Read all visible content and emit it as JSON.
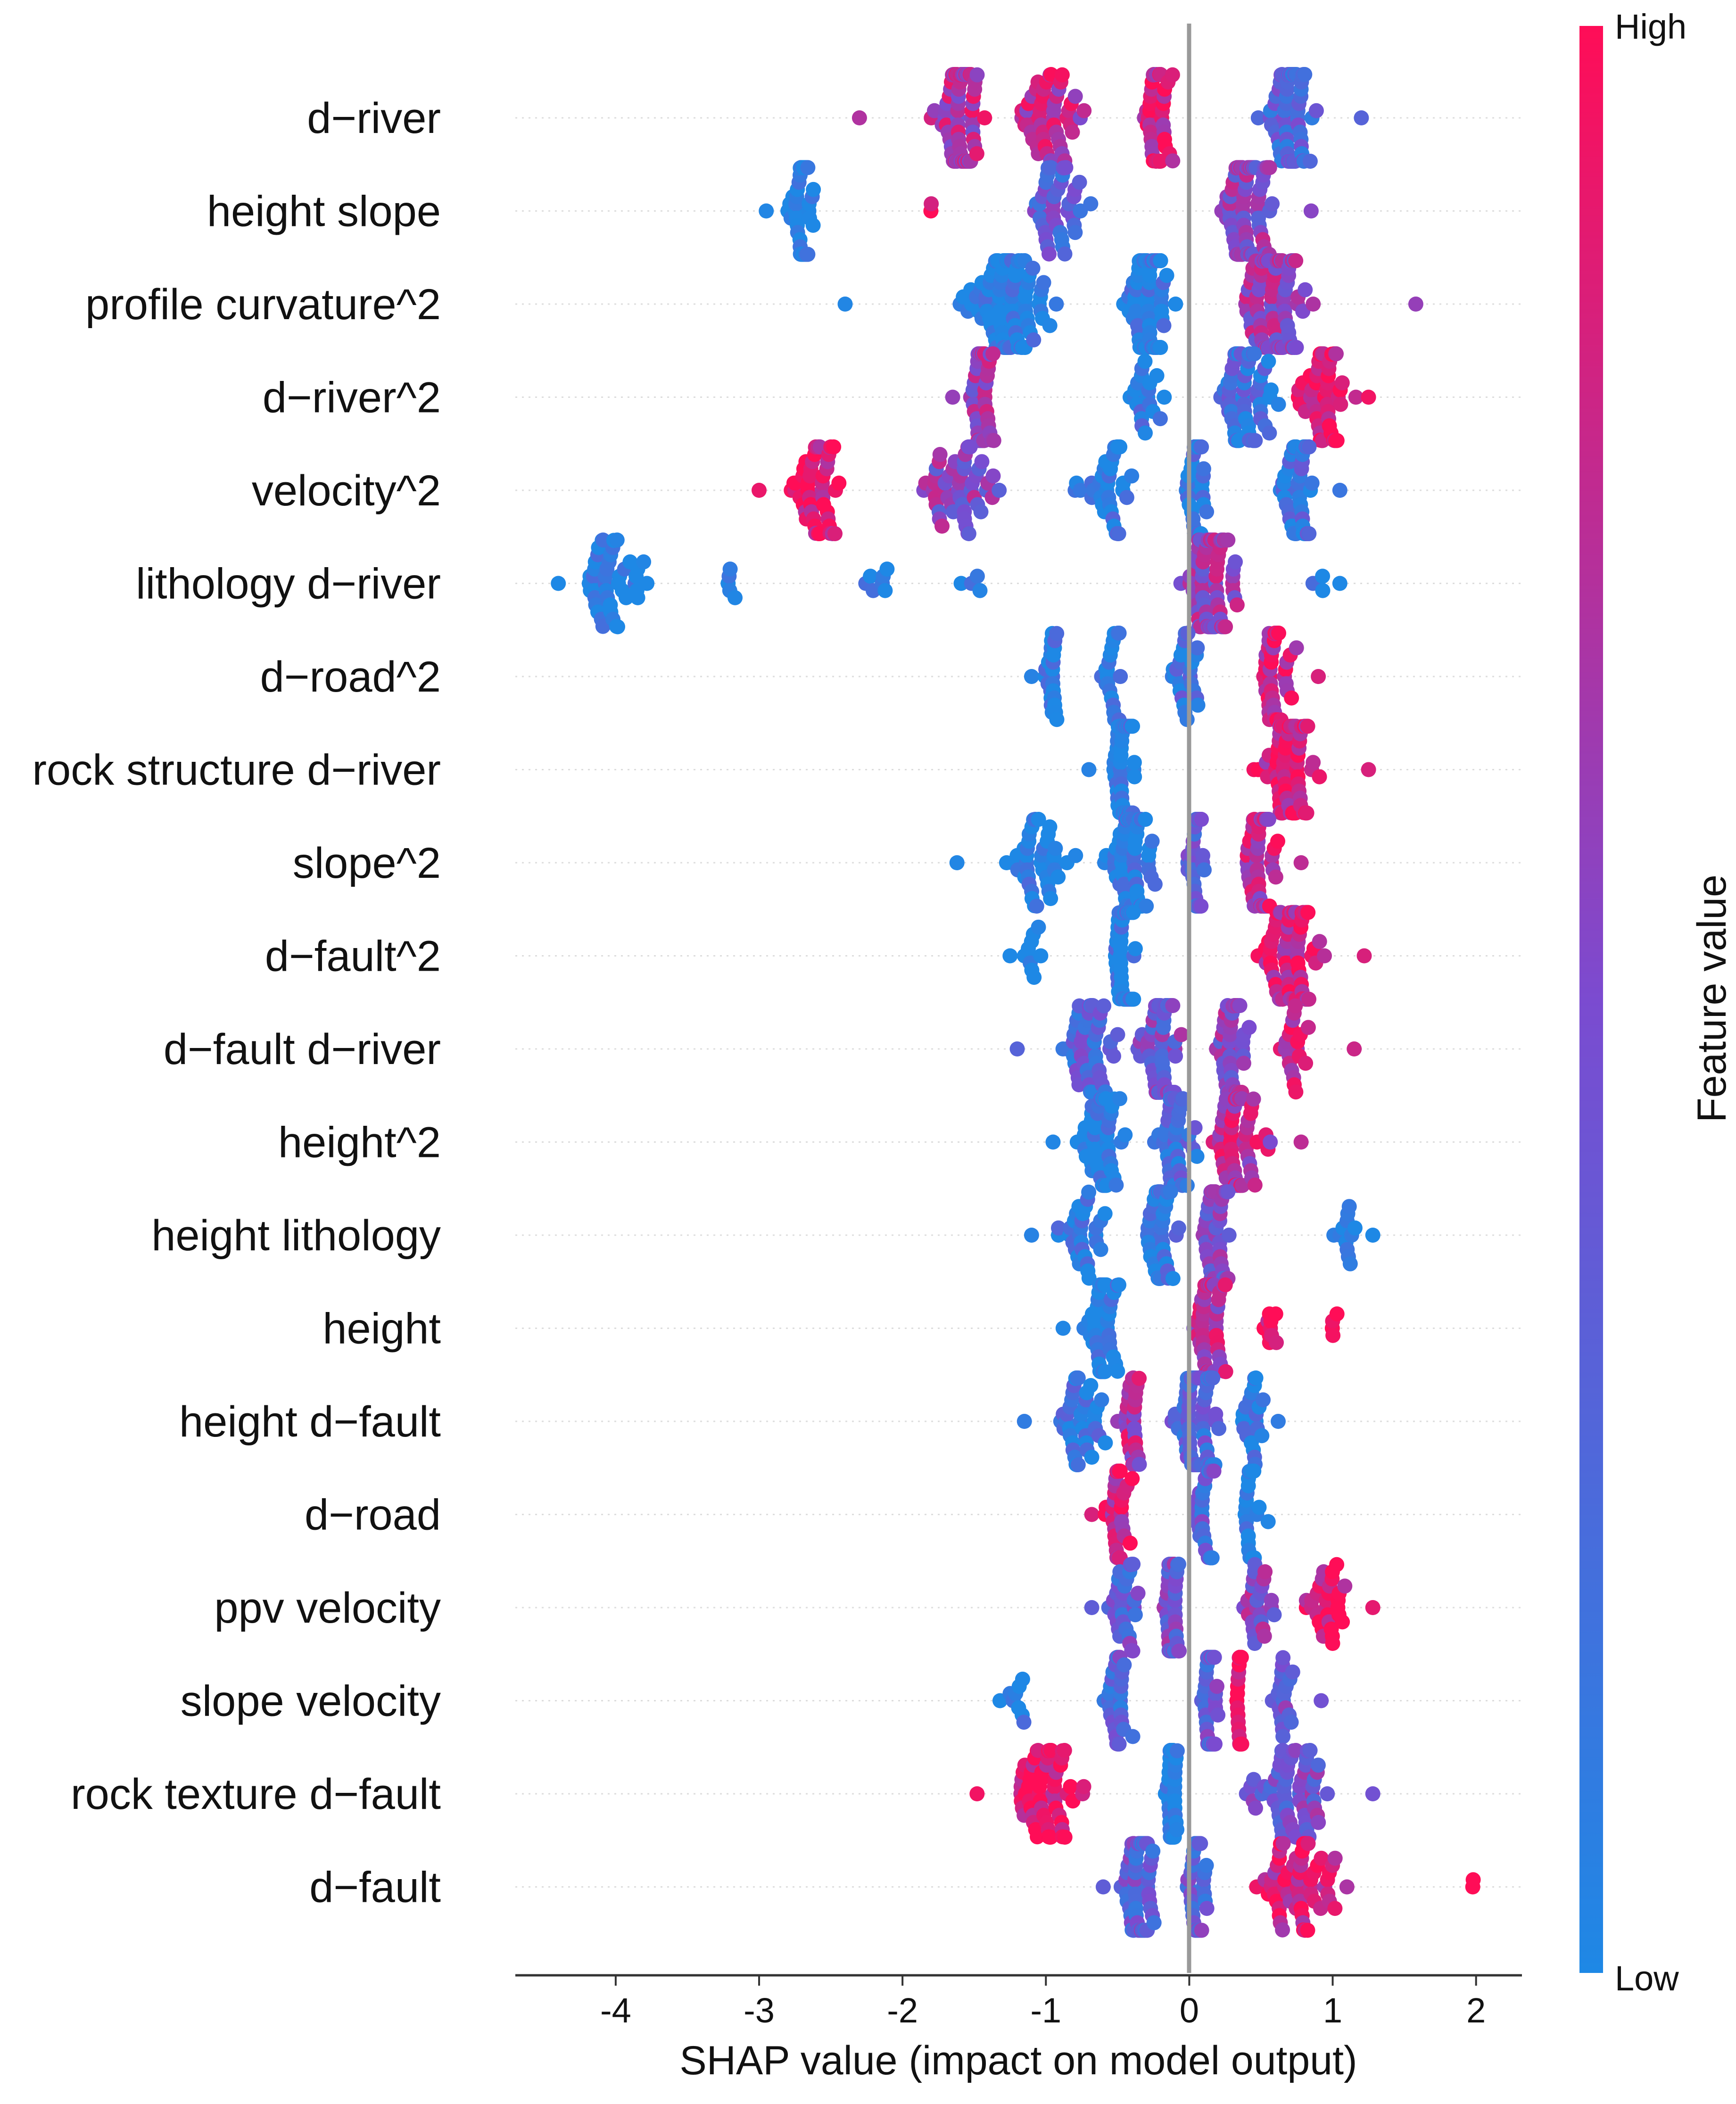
{
  "chart_data": {
    "type": "scatter",
    "subtype": "shap-beeswarm",
    "xlabel": "SHAP value (impact on model output)",
    "xlim": [
      -4.7,
      2.32
    ],
    "xticks": [
      -4,
      -3,
      -2,
      -1,
      0,
      1,
      2
    ],
    "xtick_labels": [
      "-4",
      "-3",
      "-2",
      "-1",
      "0",
      "1",
      "2"
    ],
    "zero_line": 0,
    "colorbar": {
      "title": "Feature value",
      "high_label": "High",
      "low_label": "Low",
      "high_color": "#ff0d57",
      "low_color": "#1e88e5"
    },
    "features": [
      {
        "name": "d−river",
        "min": -2.3,
        "max": 1.2,
        "clusters": [
          {
            "x": -1.6,
            "w": 0.3,
            "n": 90,
            "hi": 0.7
          },
          {
            "x": -1.0,
            "w": 0.45,
            "n": 50,
            "hi": 0.75
          },
          {
            "x": -0.2,
            "w": 0.2,
            "n": 40,
            "hi": 0.85
          },
          {
            "x": 0.7,
            "w": 0.3,
            "n": 70,
            "hi": 0.3
          }
        ]
      },
      {
        "name": "height slope",
        "min": -2.95,
        "max": 0.85,
        "clusters": [
          {
            "x": -2.7,
            "w": 0.15,
            "n": 45,
            "hi": 0.02
          },
          {
            "x": -1.8,
            "w": 0.05,
            "n": 2,
            "hi": 0.95
          },
          {
            "x": -0.9,
            "w": 0.5,
            "n": 40,
            "hi": 0.35
          },
          {
            "x": 0.4,
            "w": 0.3,
            "n": 90,
            "hi": 0.55
          }
        ]
      },
      {
        "name": "profile curvature^2",
        "min": -2.4,
        "max": 1.58,
        "clusters": [
          {
            "x": -1.3,
            "w": 0.6,
            "n": 100,
            "hi": 0.02
          },
          {
            "x": -0.3,
            "w": 0.3,
            "n": 70,
            "hi": 0.05
          },
          {
            "x": 0.6,
            "w": 0.45,
            "n": 90,
            "hi": 0.6
          }
        ]
      },
      {
        "name": "d−river^2",
        "min": -1.65,
        "max": 1.25,
        "clusters": [
          {
            "x": -1.45,
            "w": 0.15,
            "n": 50,
            "hi": 0.6
          },
          {
            "x": -0.3,
            "w": 0.25,
            "n": 20,
            "hi": 0.1
          },
          {
            "x": 0.4,
            "w": 0.3,
            "n": 60,
            "hi": 0.2
          },
          {
            "x": 0.95,
            "w": 0.3,
            "n": 50,
            "hi": 0.95
          }
        ]
      },
      {
        "name": "velocity^2",
        "min": -3.0,
        "max": 1.05,
        "clusters": [
          {
            "x": -2.6,
            "w": 0.35,
            "n": 50,
            "hi": 0.92
          },
          {
            "x": -1.6,
            "w": 0.5,
            "n": 50,
            "hi": 0.55
          },
          {
            "x": -0.6,
            "w": 0.45,
            "n": 35,
            "hi": 0.1
          },
          {
            "x": 0.05,
            "w": 0.15,
            "n": 45,
            "hi": 0.1
          },
          {
            "x": 0.75,
            "w": 0.25,
            "n": 45,
            "hi": 0.15
          }
        ]
      },
      {
        "name": "lithology d−river",
        "min": -4.4,
        "max": 1.05,
        "clusters": [
          {
            "x": -4.0,
            "w": 0.4,
            "n": 45,
            "hi": 0.0
          },
          {
            "x": -3.2,
            "w": 0.1,
            "n": 5,
            "hi": 0.0
          },
          {
            "x": -2.2,
            "w": 0.25,
            "n": 7,
            "hi": 0.0
          },
          {
            "x": -1.5,
            "w": 0.15,
            "n": 4,
            "hi": 0.0
          },
          {
            "x": 0.15,
            "w": 0.3,
            "n": 90,
            "hi": 0.6
          },
          {
            "x": 0.9,
            "w": 0.15,
            "n": 3,
            "hi": 0.0
          }
        ]
      },
      {
        "name": "d−road^2",
        "min": -1.1,
        "max": 0.9,
        "clusters": [
          {
            "x": -0.95,
            "w": 0.1,
            "n": 25,
            "hi": 0.05
          },
          {
            "x": -0.55,
            "w": 0.15,
            "n": 20,
            "hi": 0.05
          },
          {
            "x": 0.0,
            "w": 0.2,
            "n": 25,
            "hi": 0.2
          },
          {
            "x": 0.6,
            "w": 0.2,
            "n": 40,
            "hi": 0.85
          }
        ]
      },
      {
        "name": "rock structure d−river",
        "min": -0.7,
        "max": 1.25,
        "clusters": [
          {
            "x": -0.45,
            "w": 0.15,
            "n": 60,
            "hi": 0.05
          },
          {
            "x": 0.7,
            "w": 0.4,
            "n": 70,
            "hi": 0.85
          }
        ]
      },
      {
        "name": "slope^2",
        "min": -1.62,
        "max": 0.78,
        "clusters": [
          {
            "x": -1.1,
            "w": 0.4,
            "n": 40,
            "hi": 0.02
          },
          {
            "x": -0.4,
            "w": 0.3,
            "n": 60,
            "hi": 0.05
          },
          {
            "x": 0.05,
            "w": 0.12,
            "n": 40,
            "hi": 0.3
          },
          {
            "x": 0.5,
            "w": 0.2,
            "n": 60,
            "hi": 0.75
          }
        ]
      },
      {
        "name": "d−fault^2",
        "min": -1.25,
        "max": 1.22,
        "clusters": [
          {
            "x": -1.1,
            "w": 0.15,
            "n": 10,
            "hi": 0.0
          },
          {
            "x": -0.45,
            "w": 0.15,
            "n": 60,
            "hi": 0.05
          },
          {
            "x": 0.7,
            "w": 0.45,
            "n": 70,
            "hi": 0.85
          }
        ]
      },
      {
        "name": "d−fault d−river",
        "min": -1.2,
        "max": 1.15,
        "clusters": [
          {
            "x": -0.7,
            "w": 0.35,
            "n": 50,
            "hi": 0.3
          },
          {
            "x": -0.2,
            "w": 0.25,
            "n": 60,
            "hi": 0.45
          },
          {
            "x": 0.3,
            "w": 0.25,
            "n": 50,
            "hi": 0.55
          },
          {
            "x": 0.75,
            "w": 0.2,
            "n": 20,
            "hi": 0.8
          }
        ]
      },
      {
        "name": "height^2",
        "min": -0.95,
        "max": 0.78,
        "clusters": [
          {
            "x": -0.6,
            "w": 0.3,
            "n": 50,
            "hi": 0.02
          },
          {
            "x": -0.1,
            "w": 0.25,
            "n": 50,
            "hi": 0.2
          },
          {
            "x": 0.35,
            "w": 0.3,
            "n": 55,
            "hi": 0.75
          }
        ]
      },
      {
        "name": "height lithology",
        "min": -1.1,
        "max": 1.28,
        "clusters": [
          {
            "x": -0.75,
            "w": 0.35,
            "n": 30,
            "hi": 0.05
          },
          {
            "x": -0.2,
            "w": 0.25,
            "n": 35,
            "hi": 0.15
          },
          {
            "x": 0.2,
            "w": 0.2,
            "n": 50,
            "hi": 0.5
          },
          {
            "x": 1.1,
            "w": 0.15,
            "n": 12,
            "hi": 0.0
          }
        ]
      },
      {
        "name": "height",
        "min": -0.88,
        "max": 1.03,
        "clusters": [
          {
            "x": -0.6,
            "w": 0.25,
            "n": 45,
            "hi": 0.02
          },
          {
            "x": 0.15,
            "w": 0.2,
            "n": 60,
            "hi": 0.7
          },
          {
            "x": 0.55,
            "w": 0.15,
            "n": 10,
            "hi": 0.95
          },
          {
            "x": 1.0,
            "w": 0.03,
            "n": 3,
            "hi": 1.0
          }
        ]
      },
      {
        "name": "height d−fault",
        "min": -1.15,
        "max": 0.62,
        "clusters": [
          {
            "x": -0.75,
            "w": 0.3,
            "n": 40,
            "hi": 0.1
          },
          {
            "x": -0.4,
            "w": 0.15,
            "n": 30,
            "hi": 0.7
          },
          {
            "x": 0.05,
            "w": 0.3,
            "n": 80,
            "hi": 0.3
          },
          {
            "x": 0.45,
            "w": 0.15,
            "n": 20,
            "hi": 0.1
          }
        ]
      },
      {
        "name": "d−road",
        "min": -0.68,
        "max": 0.55,
        "clusters": [
          {
            "x": -0.5,
            "w": 0.15,
            "n": 35,
            "hi": 0.85
          },
          {
            "x": 0.1,
            "w": 0.15,
            "n": 25,
            "hi": 0.3
          },
          {
            "x": 0.43,
            "w": 0.1,
            "n": 25,
            "hi": 0.02
          }
        ]
      },
      {
        "name": "ppv velocity",
        "min": -0.68,
        "max": 1.28,
        "clusters": [
          {
            "x": -0.45,
            "w": 0.2,
            "n": 30,
            "hi": 0.35
          },
          {
            "x": -0.12,
            "w": 0.1,
            "n": 50,
            "hi": 0.45
          },
          {
            "x": 0.5,
            "w": 0.25,
            "n": 25,
            "hi": 0.55
          },
          {
            "x": 0.95,
            "w": 0.25,
            "n": 30,
            "hi": 0.9
          }
        ]
      },
      {
        "name": "slope velocity",
        "min": -1.32,
        "max": 0.92,
        "clusters": [
          {
            "x": -1.2,
            "w": 0.12,
            "n": 8,
            "hi": 0.0
          },
          {
            "x": -0.5,
            "w": 0.2,
            "n": 30,
            "hi": 0.3
          },
          {
            "x": 0.15,
            "w": 0.1,
            "n": 45,
            "hi": 0.35
          },
          {
            "x": 0.35,
            "w": 0.05,
            "n": 25,
            "hi": 0.95
          },
          {
            "x": 0.65,
            "w": 0.2,
            "n": 20,
            "hi": 0.45
          }
        ]
      },
      {
        "name": "rock texture d−fault",
        "min": -1.48,
        "max": 1.28,
        "clusters": [
          {
            "x": -1.0,
            "w": 0.45,
            "n": 60,
            "hi": 0.95
          },
          {
            "x": -0.12,
            "w": 0.08,
            "n": 45,
            "hi": 0.02
          },
          {
            "x": 0.7,
            "w": 0.5,
            "n": 60,
            "hi": 0.45
          }
        ]
      },
      {
        "name": "d−fault",
        "min": -0.6,
        "max": 1.98,
        "clusters": [
          {
            "x": -0.35,
            "w": 0.2,
            "n": 70,
            "hi": 0.35
          },
          {
            "x": 0.05,
            "w": 0.15,
            "n": 40,
            "hi": 0.35
          },
          {
            "x": 0.8,
            "w": 0.6,
            "n": 60,
            "hi": 0.85
          },
          {
            "x": 1.98,
            "w": 0.01,
            "n": 1,
            "hi": 1.0
          }
        ]
      }
    ]
  }
}
